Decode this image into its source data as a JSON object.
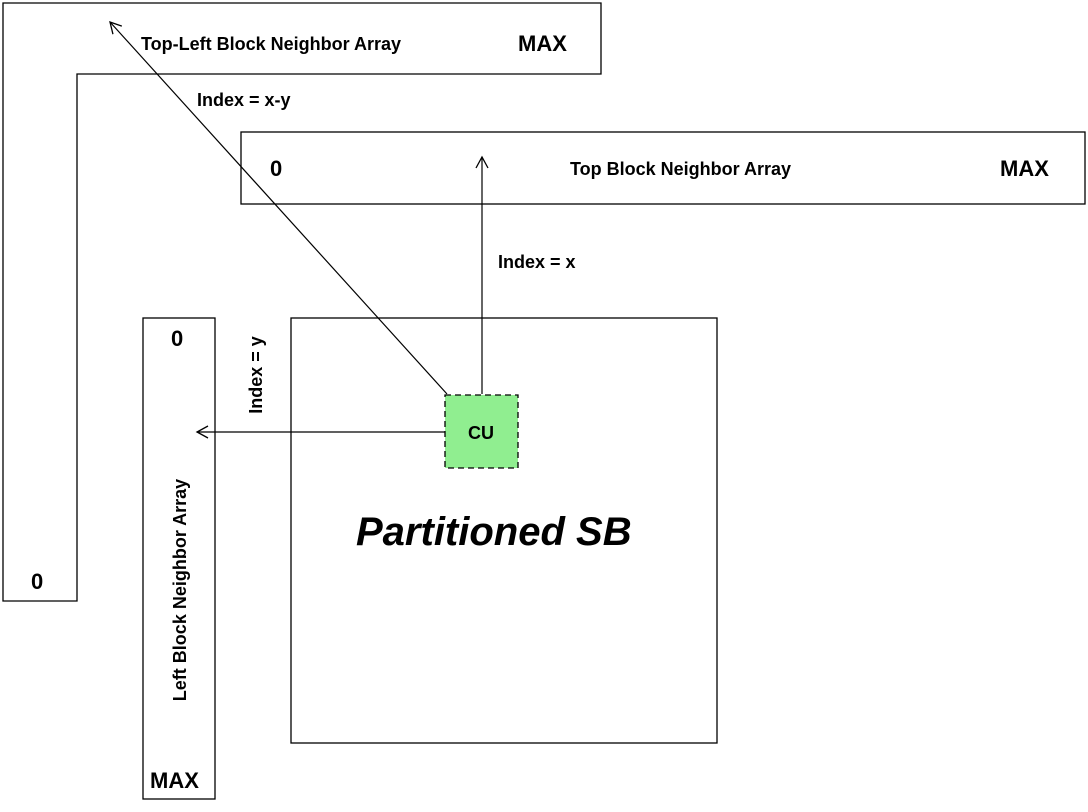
{
  "top_left_array": {
    "label": "Top-Left Block Neighbor Array",
    "max_label": "MAX",
    "zero_label": "0",
    "index_label": "Index = x-y"
  },
  "top_array": {
    "label": "Top Block Neighbor Array",
    "zero_label": "0",
    "max_label": "MAX",
    "index_label": "Index = x"
  },
  "left_array": {
    "label": "Left Block Neighbor Array",
    "zero_label": "0",
    "max_label": "MAX",
    "index_label": "Index = y"
  },
  "superblock": {
    "label": "Partitioned SB"
  },
  "cu": {
    "label": "CU",
    "fill": "#90EE90"
  }
}
